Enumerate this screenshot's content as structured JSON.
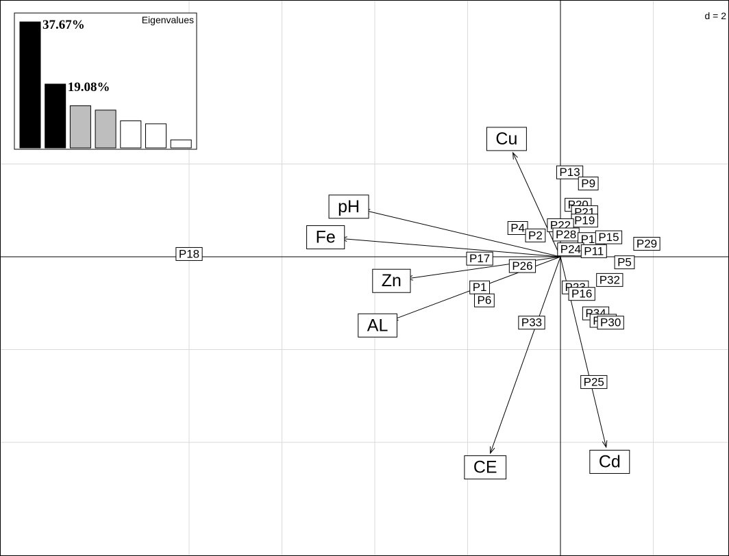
{
  "chart_data": {
    "type": "scatter",
    "title": "",
    "scale_label": "d = 2",
    "axes": {
      "xlim": [
        -4.55,
        1.38
      ],
      "ylim": [
        -2.58,
        1.73
      ],
      "grid": true
    },
    "individuals": [
      {
        "name": "P18",
        "x": -4.0,
        "y": 0.03
      },
      {
        "name": "P13",
        "x": 0.1,
        "y": 0.91
      },
      {
        "name": "P9",
        "x": 0.3,
        "y": 0.79
      },
      {
        "name": "P20",
        "x": 0.19,
        "y": 0.56
      },
      {
        "name": "P21",
        "x": 0.26,
        "y": 0.48
      },
      {
        "name": "P19",
        "x": 0.26,
        "y": 0.39
      },
      {
        "name": "P22",
        "x": 0.0,
        "y": 0.34
      },
      {
        "name": "P4",
        "x": -0.46,
        "y": 0.31
      },
      {
        "name": "P2",
        "x": -0.27,
        "y": 0.23
      },
      {
        "name": "P28",
        "x": 0.06,
        "y": 0.24
      },
      {
        "name": "P14",
        "x": 0.33,
        "y": 0.19
      },
      {
        "name": "P15",
        "x": 0.52,
        "y": 0.21
      },
      {
        "name": "P29",
        "x": 0.93,
        "y": 0.14
      },
      {
        "name": "P24",
        "x": 0.11,
        "y": 0.08
      },
      {
        "name": "P11",
        "x": 0.36,
        "y": 0.06
      },
      {
        "name": "P5",
        "x": 0.69,
        "y": -0.06
      },
      {
        "name": "P17",
        "x": -0.87,
        "y": -0.02
      },
      {
        "name": "P26",
        "x": -0.41,
        "y": -0.1
      },
      {
        "name": "P32",
        "x": 0.53,
        "y": -0.25
      },
      {
        "name": "P23",
        "x": 0.16,
        "y": -0.33
      },
      {
        "name": "P16",
        "x": 0.23,
        "y": -0.4
      },
      {
        "name": "P1",
        "x": -0.87,
        "y": -0.33
      },
      {
        "name": "P6",
        "x": -0.82,
        "y": -0.47
      },
      {
        "name": "P34",
        "x": 0.38,
        "y": -0.61
      },
      {
        "name": "P31",
        "x": 0.46,
        "y": -0.69
      },
      {
        "name": "P30",
        "x": 0.54,
        "y": -0.71
      },
      {
        "name": "P33",
        "x": -0.31,
        "y": -0.71
      },
      {
        "name": "P25",
        "x": 0.36,
        "y": -1.35
      }
    ],
    "variables": [
      {
        "name": "Cu",
        "x": -0.58,
        "y": 1.27
      },
      {
        "name": "pH",
        "x": -2.28,
        "y": 0.54
      },
      {
        "name": "Fe",
        "x": -2.53,
        "y": 0.21
      },
      {
        "name": "Zn",
        "x": -1.82,
        "y": -0.26
      },
      {
        "name": "AL",
        "x": -1.97,
        "y": -0.74
      },
      {
        "name": "CE",
        "x": -0.81,
        "y": -2.27
      },
      {
        "name": "Cd",
        "x": 0.53,
        "y": -2.21
      }
    ],
    "eigenvalues": {
      "title": "Eigenvalues",
      "values": [
        37.67,
        19.08,
        12.6,
        11.3,
        8.1,
        7.2,
        2.4
      ],
      "fills": [
        "#000000",
        "#000000",
        "#bebebe",
        "#bebebe",
        "#ffffff",
        "#ffffff",
        "#ffffff"
      ],
      "labels": [
        "37.67%",
        "19.08%"
      ]
    }
  }
}
